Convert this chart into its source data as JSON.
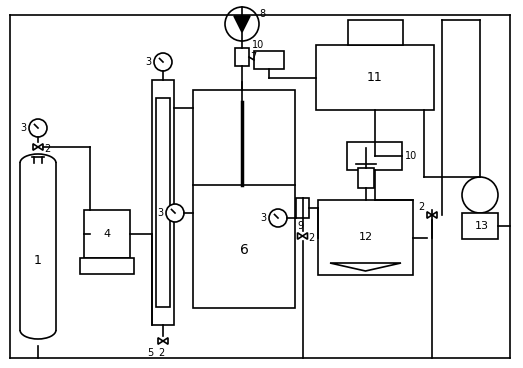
{
  "bg_color": "#ffffff",
  "line_color": "#000000",
  "lw": 1.2,
  "lw_thick": 2.5,
  "figsize": [
    5.23,
    3.68
  ],
  "dpi": 100
}
